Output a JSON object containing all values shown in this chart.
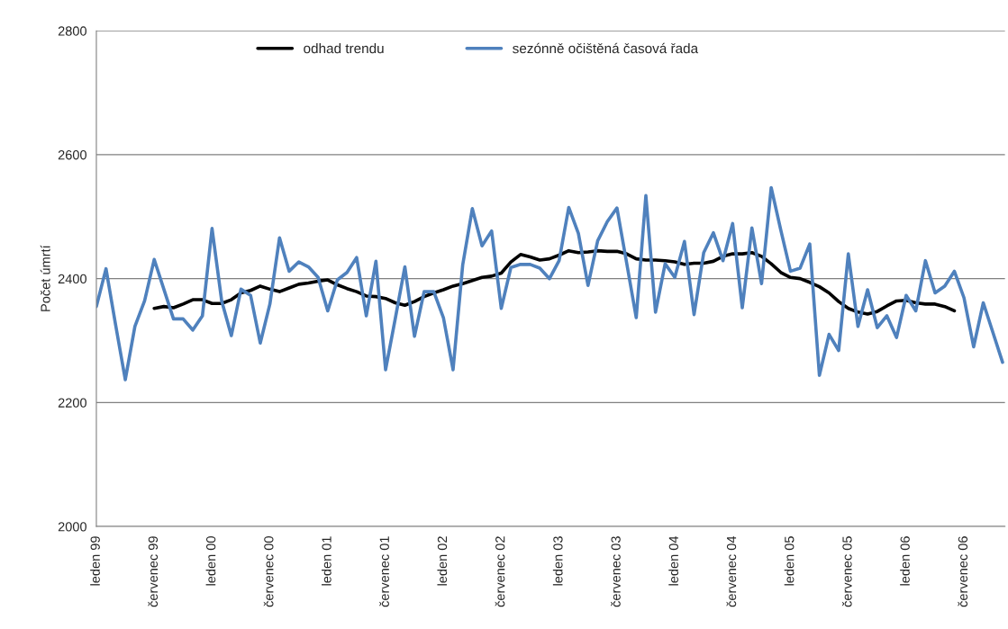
{
  "chart_data": {
    "type": "line",
    "ylabel": "Počet úmrtí",
    "categories": [
      "leden 99",
      null,
      null,
      null,
      null,
      null,
      "červenec 99",
      null,
      null,
      null,
      null,
      null,
      "leden 00",
      null,
      null,
      null,
      null,
      null,
      "červenec 00",
      null,
      null,
      null,
      null,
      null,
      "leden 01",
      null,
      null,
      null,
      null,
      null,
      "červenec 01",
      null,
      null,
      null,
      null,
      null,
      "leden 02",
      null,
      null,
      null,
      null,
      null,
      "červenec 02",
      null,
      null,
      null,
      null,
      null,
      "leden 03",
      null,
      null,
      null,
      null,
      null,
      "červenec 03",
      null,
      null,
      null,
      null,
      null,
      "leden 04",
      null,
      null,
      null,
      null,
      null,
      "červenec 04",
      null,
      null,
      null,
      null,
      null,
      "leden 05",
      null,
      null,
      null,
      null,
      null,
      "červenec 05",
      null,
      null,
      null,
      null,
      null,
      "leden 06",
      null,
      null,
      null,
      null,
      null,
      "červenec 06",
      null,
      null,
      null,
      null
    ],
    "series": [
      {
        "name": "odhad trendu",
        "color": "#000000",
        "values": [
          null,
          null,
          null,
          null,
          null,
          null,
          2352,
          2355,
          2353,
          2359,
          2366,
          2366,
          2360,
          2360,
          2366,
          2377,
          2381,
          2388,
          2383,
          2379,
          2385,
          2391,
          2393,
          2396,
          2398,
          2390,
          2384,
          2379,
          2372,
          2371,
          2368,
          2361,
          2357,
          2363,
          2371,
          2377,
          2382,
          2388,
          2392,
          2397,
          2402,
          2404,
          2409,
          2427,
          2439,
          2435,
          2430,
          2432,
          2438,
          2445,
          2442,
          2443,
          2445,
          2444,
          2444,
          2440,
          2432,
          2430,
          2430,
          2429,
          2427,
          2423,
          2425,
          2425,
          2428,
          2436,
          2440,
          2440,
          2442,
          2436,
          2424,
          2410,
          2402,
          2400,
          2394,
          2387,
          2377,
          2363,
          2352,
          2346,
          2343,
          2347,
          2356,
          2364,
          2365,
          2361,
          2359,
          2359,
          2355,
          2348,
          null,
          null,
          null,
          null,
          null
        ]
      },
      {
        "name": "sezónně očištěná časová řada",
        "color": "#4f81bd",
        "values": [
          2355,
          2416,
          2325,
          2237,
          2323,
          2364,
          2431,
          2383,
          2335,
          2335,
          2317,
          2340,
          2481,
          2364,
          2308,
          2383,
          2373,
          2296,
          2359,
          2466,
          2412,
          2427,
          2419,
          2402,
          2348,
          2398,
          2410,
          2434,
          2340,
          2428,
          2253,
          2335,
          2419,
          2307,
          2379,
          2379,
          2337,
          2253,
          2422,
          2513,
          2453,
          2477,
          2352,
          2418,
          2423,
          2423,
          2417,
          2400,
          2429,
          2515,
          2473,
          2389,
          2461,
          2492,
          2514,
          2426,
          2337,
          2534,
          2346,
          2424,
          2402,
          2460,
          2342,
          2442,
          2474,
          2429,
          2489,
          2353,
          2482,
          2392,
          2547,
          2478,
          2412,
          2417,
          2456,
          2244,
          2310,
          2284,
          2440,
          2323,
          2382,
          2321,
          2340,
          2305,
          2373,
          2348,
          2429,
          2377,
          2388,
          2412,
          2369,
          2290,
          2361,
          2313,
          2265
        ]
      }
    ],
    "ylim": [
      2000,
      2800
    ],
    "yticks": [
      2000,
      2200,
      2400,
      2600,
      2800
    ],
    "grid": "y",
    "legend": "top",
    "line_style": "solid",
    "marker": "none"
  }
}
